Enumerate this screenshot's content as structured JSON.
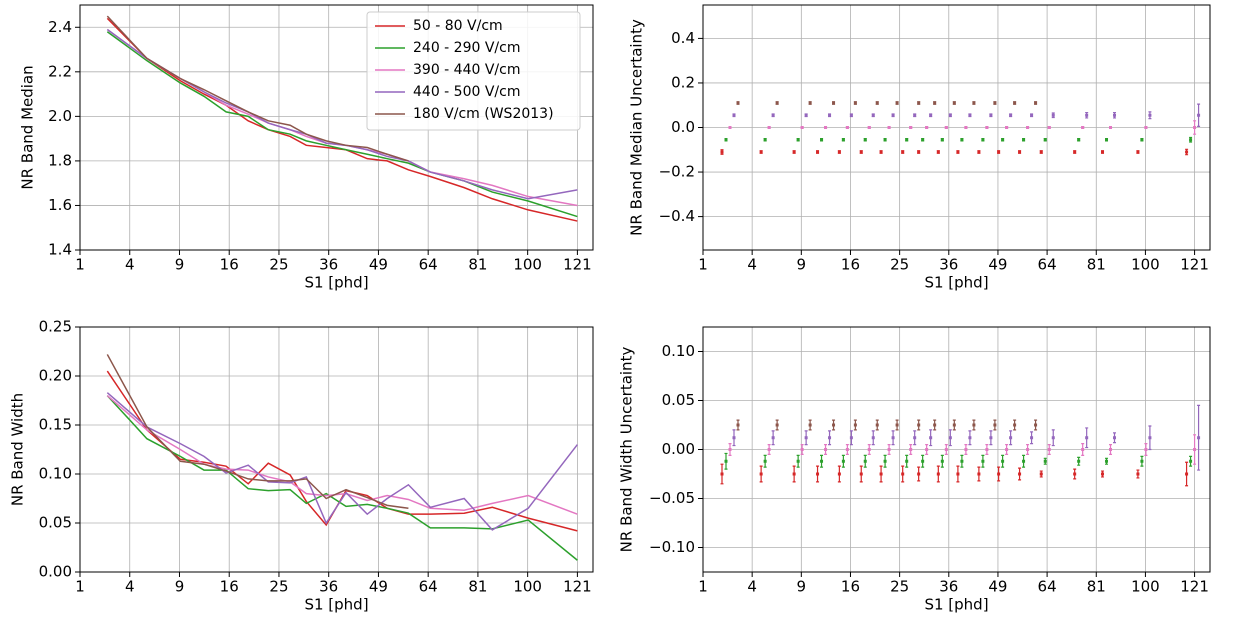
{
  "chart_data": [
    {
      "type": "line",
      "xscale": "sqrt",
      "xlabel": "S1 [phd]",
      "ylabel": "NR Band Median",
      "grid": true,
      "legend": "upper right",
      "x": [
        2.4,
        5.5,
        9.1,
        12.2,
        15.5,
        19.2,
        22.9,
        27.3,
        30.8,
        35.4,
        40.3,
        45.9,
        51.5,
        57.8,
        64.7,
        76.1,
        86.3,
        100.2,
        121
      ],
      "xlim": [
        1,
        128
      ],
      "xticks": [
        1,
        4,
        9,
        16,
        25,
        36,
        49,
        64,
        81,
        100,
        121
      ],
      "ylim": [
        1.4,
        2.5
      ],
      "yticks": [
        1.4,
        1.6,
        1.8,
        {
          "value": 2.0,
          "label": "2.0"
        },
        2.2,
        2.4
      ],
      "series": [
        {
          "name": "50 - 80 V/cm",
          "color": "#d62728",
          "values": [
            2.44,
            2.26,
            2.16,
            2.1,
            2.05,
            1.98,
            1.94,
            1.91,
            1.87,
            1.86,
            1.85,
            1.81,
            1.8,
            1.76,
            1.73,
            1.68,
            1.63,
            1.58,
            1.53
          ]
        },
        {
          "name": "240 - 290 V/cm",
          "color": "#2ca02c",
          "values": [
            2.38,
            2.25,
            2.15,
            2.09,
            2.02,
            2.0,
            1.94,
            1.92,
            1.89,
            1.87,
            1.85,
            1.83,
            1.81,
            1.79,
            1.75,
            1.71,
            1.66,
            1.62,
            1.55
          ]
        },
        {
          "name": "390 - 440 V/cm",
          "color": "#e377c2",
          "values": [
            2.39,
            2.26,
            2.17,
            2.11,
            2.05,
            2.01,
            1.97,
            1.94,
            1.91,
            1.88,
            1.87,
            1.85,
            1.83,
            1.8,
            1.75,
            1.72,
            1.69,
            1.64,
            1.6
          ]
        },
        {
          "name": "440 - 500 V/cm",
          "color": "#9467bd",
          "values": [
            2.39,
            2.26,
            2.17,
            2.11,
            2.06,
            2.02,
            1.97,
            1.94,
            1.92,
            1.88,
            1.87,
            1.85,
            1.82,
            1.8,
            1.75,
            1.71,
            1.67,
            1.63,
            1.67
          ]
        },
        {
          "name": "180 V/cm (WS2013)",
          "color": "#8c564b",
          "values": [
            2.45,
            2.26,
            2.17,
            2.12,
            2.07,
            2.02,
            1.98,
            1.96,
            1.92,
            1.89,
            1.87,
            1.86,
            1.83,
            1.8,
            null,
            null,
            null,
            null,
            null
          ]
        }
      ]
    },
    {
      "type": "errorbar",
      "xscale": "sqrt",
      "xlabel": "S1 [phd]",
      "ylabel": "NR Band Median Uncertainty",
      "grid": true,
      "x": [
        2.4,
        5.5,
        9.1,
        12.2,
        15.5,
        19.2,
        22.9,
        27.3,
        30.8,
        35.4,
        40.3,
        45.9,
        51.5,
        57.8,
        64.7,
        76.1,
        86.3,
        100.2,
        121
      ],
      "xlim": [
        1,
        128
      ],
      "xticks": [
        1,
        4,
        9,
        16,
        25,
        36,
        49,
        64,
        81,
        100,
        121
      ],
      "ylim": [
        -0.55,
        0.55
      ],
      "yticks": [
        {
          "value": -0.4,
          "label": "−0.4"
        },
        {
          "value": -0.2,
          "label": "−0.2"
        },
        {
          "value": 0,
          "label": "0.0"
        },
        0.2,
        0.4
      ],
      "series": [
        {
          "color": "#d62728",
          "values": [
            -0.11,
            -0.11,
            -0.11,
            -0.11,
            -0.11,
            -0.11,
            -0.11,
            -0.11,
            -0.11,
            -0.11,
            -0.11,
            -0.11,
            -0.11,
            -0.11,
            -0.11,
            -0.11,
            -0.11,
            -0.11,
            -0.11
          ],
          "errors": [
            0.01,
            0.006,
            0.006,
            0.006,
            0.006,
            0.006,
            0.006,
            0.006,
            0.006,
            0.006,
            0.006,
            0.006,
            0.006,
            0.006,
            0.006,
            0.006,
            0.006,
            0.006,
            0.012
          ]
        },
        {
          "color": "#2ca02c",
          "values": [
            -0.055,
            -0.055,
            -0.055,
            -0.055,
            -0.055,
            -0.055,
            -0.055,
            -0.055,
            -0.055,
            -0.055,
            -0.055,
            -0.055,
            -0.055,
            -0.055,
            -0.055,
            -0.055,
            -0.055,
            -0.055,
            -0.055
          ],
          "errors": [
            0.005,
            0.005,
            0.005,
            0.005,
            0.005,
            0.005,
            0.005,
            0.005,
            0.005,
            0.005,
            0.005,
            0.005,
            0.005,
            0.005,
            0.005,
            0.005,
            0.005,
            0.005,
            0.01
          ]
        },
        {
          "color": "#e377c2",
          "values": [
            0,
            0,
            0,
            0,
            0,
            0,
            0,
            0,
            0,
            0,
            0,
            0,
            0,
            0,
            0,
            0,
            0,
            0,
            0
          ],
          "errors": [
            0.004,
            0.004,
            0.004,
            0.004,
            0.004,
            0.004,
            0.004,
            0.004,
            0.004,
            0.004,
            0.004,
            0.004,
            0.004,
            0.004,
            0.004,
            0.004,
            0.004,
            0.004,
            0.03
          ]
        },
        {
          "color": "#9467bd",
          "values": [
            0.055,
            0.055,
            0.055,
            0.055,
            0.055,
            0.055,
            0.055,
            0.055,
            0.055,
            0.055,
            0.055,
            0.055,
            0.055,
            0.055,
            0.055,
            0.055,
            0.055,
            0.055,
            0.055
          ],
          "errors": [
            0.006,
            0.006,
            0.006,
            0.006,
            0.006,
            0.006,
            0.006,
            0.006,
            0.006,
            0.006,
            0.006,
            0.006,
            0.006,
            0.006,
            0.01,
            0.012,
            0.012,
            0.015,
            0.05
          ]
        },
        {
          "color": "#8c564b",
          "values": [
            0.11,
            0.11,
            0.11,
            0.11,
            0.11,
            0.11,
            0.11,
            0.11,
            0.11,
            0.11,
            0.11,
            0.11,
            0.11,
            0.11,
            null,
            null,
            null,
            null,
            null
          ],
          "errors": [
            0.006,
            0.006,
            0.006,
            0.006,
            0.006,
            0.006,
            0.006,
            0.006,
            0.006,
            0.006,
            0.006,
            0.006,
            0.006,
            0.006,
            null,
            null,
            null,
            null,
            null
          ]
        }
      ]
    },
    {
      "type": "line",
      "xscale": "sqrt",
      "xlabel": "S1 [phd]",
      "ylabel": "NR Band Width",
      "grid": true,
      "x": [
        2.4,
        5.5,
        9.1,
        12.2,
        15.5,
        19.2,
        22.9,
        27.3,
        30.8,
        35.4,
        40.3,
        45.9,
        51.5,
        57.8,
        64.7,
        76.1,
        86.3,
        100.2,
        121
      ],
      "xlim": [
        1,
        128
      ],
      "xticks": [
        1,
        4,
        9,
        16,
        25,
        36,
        49,
        64,
        81,
        100,
        121
      ],
      "ylim": [
        0,
        0.25
      ],
      "yticks": [
        {
          "value": 0,
          "label": "0.00"
        },
        0.05,
        {
          "value": 0.1,
          "label": "0.10"
        },
        0.15,
        {
          "value": 0.2,
          "label": "0.20"
        },
        0.25
      ],
      "series": [
        {
          "color": "#d62728",
          "values": [
            0.205,
            0.145,
            0.115,
            0.112,
            0.108,
            0.09,
            0.111,
            0.099,
            0.072,
            0.048,
            0.083,
            0.078,
            0.065,
            0.059,
            0.059,
            0.06,
            0.066,
            0.055,
            0.042
          ]
        },
        {
          "color": "#2ca02c",
          "values": [
            0.18,
            0.136,
            0.118,
            0.104,
            0.104,
            0.085,
            0.083,
            0.084,
            0.07,
            0.08,
            0.067,
            0.069,
            0.065,
            0.06,
            0.045,
            0.045,
            0.044,
            0.053,
            0.012
          ]
        },
        {
          "color": "#e377c2",
          "values": [
            0.18,
            0.145,
            0.125,
            0.11,
            0.105,
            0.104,
            0.097,
            0.092,
            0.08,
            0.078,
            0.08,
            0.073,
            0.078,
            0.074,
            0.065,
            0.063,
            0.07,
            0.078,
            0.059
          ]
        },
        {
          "color": "#9467bd",
          "values": [
            0.183,
            0.148,
            0.131,
            0.118,
            0.101,
            0.109,
            0.092,
            0.091,
            0.097,
            0.05,
            0.081,
            0.059,
            0.075,
            0.089,
            0.066,
            0.075,
            0.043,
            0.065,
            0.13
          ]
        },
        {
          "color": "#8c564b",
          "values": [
            0.222,
            0.148,
            0.113,
            0.11,
            0.103,
            0.095,
            0.093,
            0.093,
            0.095,
            0.075,
            0.084,
            0.076,
            0.068,
            0.065,
            null,
            null,
            null,
            null,
            null
          ]
        }
      ]
    },
    {
      "type": "errorbar",
      "xscale": "sqrt",
      "xlabel": "S1 [phd]",
      "ylabel": "NR Band Width Uncertainty",
      "grid": true,
      "x": [
        2.4,
        5.5,
        9.1,
        12.2,
        15.5,
        19.2,
        22.9,
        27.3,
        30.8,
        35.4,
        40.3,
        45.9,
        51.5,
        57.8,
        64.7,
        76.1,
        86.3,
        100.2,
        121
      ],
      "xlim": [
        1,
        128
      ],
      "xticks": [
        1,
        4,
        9,
        16,
        25,
        36,
        49,
        64,
        81,
        100,
        121
      ],
      "ylim": [
        -0.125,
        0.125
      ],
      "yticks": [
        {
          "value": -0.1,
          "label": "−0.10"
        },
        {
          "value": -0.05,
          "label": "−0.05"
        },
        {
          "value": 0,
          "label": "0.00"
        },
        0.05,
        {
          "value": 0.1,
          "label": "0.10"
        }
      ],
      "series": [
        {
          "color": "#d62728",
          "values": [
            -0.025,
            -0.025,
            -0.025,
            -0.025,
            -0.025,
            -0.025,
            -0.025,
            -0.025,
            -0.025,
            -0.025,
            -0.025,
            -0.025,
            -0.025,
            -0.025,
            -0.025,
            -0.025,
            -0.025,
            -0.025,
            -0.025
          ],
          "errors": [
            0.01,
            0.008,
            0.008,
            0.008,
            0.008,
            0.008,
            0.008,
            0.008,
            0.007,
            0.008,
            0.008,
            0.007,
            0.007,
            0.006,
            0.003,
            0.005,
            0.003,
            0.004,
            0.012
          ]
        },
        {
          "color": "#2ca02c",
          "values": [
            -0.012,
            -0.012,
            -0.012,
            -0.012,
            -0.012,
            -0.012,
            -0.012,
            -0.012,
            -0.012,
            -0.012,
            -0.012,
            -0.012,
            -0.012,
            -0.012,
            -0.012,
            -0.012,
            -0.012,
            -0.012,
            -0.012
          ],
          "errors": [
            0.008,
            0.006,
            0.006,
            0.006,
            0.006,
            0.006,
            0.006,
            0.006,
            0.006,
            0.006,
            0.006,
            0.006,
            0.006,
            0.006,
            0.003,
            0.004,
            0.003,
            0.005,
            0.005
          ]
        },
        {
          "color": "#e377c2",
          "values": [
            0,
            0,
            0,
            0,
            0,
            0,
            0,
            0,
            0,
            0,
            0,
            0,
            0,
            0,
            0,
            0,
            0,
            0,
            0
          ],
          "errors": [
            0.006,
            0.005,
            0.005,
            0.005,
            0.005,
            0.005,
            0.005,
            0.005,
            0.005,
            0.005,
            0.005,
            0.005,
            0.005,
            0.005,
            0.005,
            0.006,
            0.005,
            0.006,
            0.015
          ]
        },
        {
          "color": "#9467bd",
          "values": [
            0.012,
            0.012,
            0.012,
            0.012,
            0.012,
            0.012,
            0.012,
            0.012,
            0.012,
            0.012,
            0.012,
            0.012,
            0.012,
            0.012,
            0.012,
            0.012,
            0.012,
            0.012,
            0.012
          ],
          "errors": [
            0.008,
            0.007,
            0.007,
            0.007,
            0.007,
            0.007,
            0.007,
            0.007,
            0.008,
            0.008,
            0.007,
            0.007,
            0.007,
            0.006,
            0.008,
            0.01,
            0.005,
            0.012,
            0.033
          ]
        },
        {
          "color": "#8c564b",
          "values": [
            0.025,
            0.025,
            0.025,
            0.025,
            0.025,
            0.025,
            0.025,
            0.025,
            0.025,
            0.025,
            0.025,
            0.025,
            0.025,
            0.025,
            null,
            null,
            null,
            null,
            null
          ],
          "errors": [
            0.005,
            0.005,
            0.005,
            0.005,
            0.005,
            0.005,
            0.005,
            0.005,
            0.005,
            0.005,
            0.005,
            0.005,
            0.005,
            0.005,
            null,
            null,
            null,
            null,
            null
          ]
        }
      ]
    }
  ]
}
